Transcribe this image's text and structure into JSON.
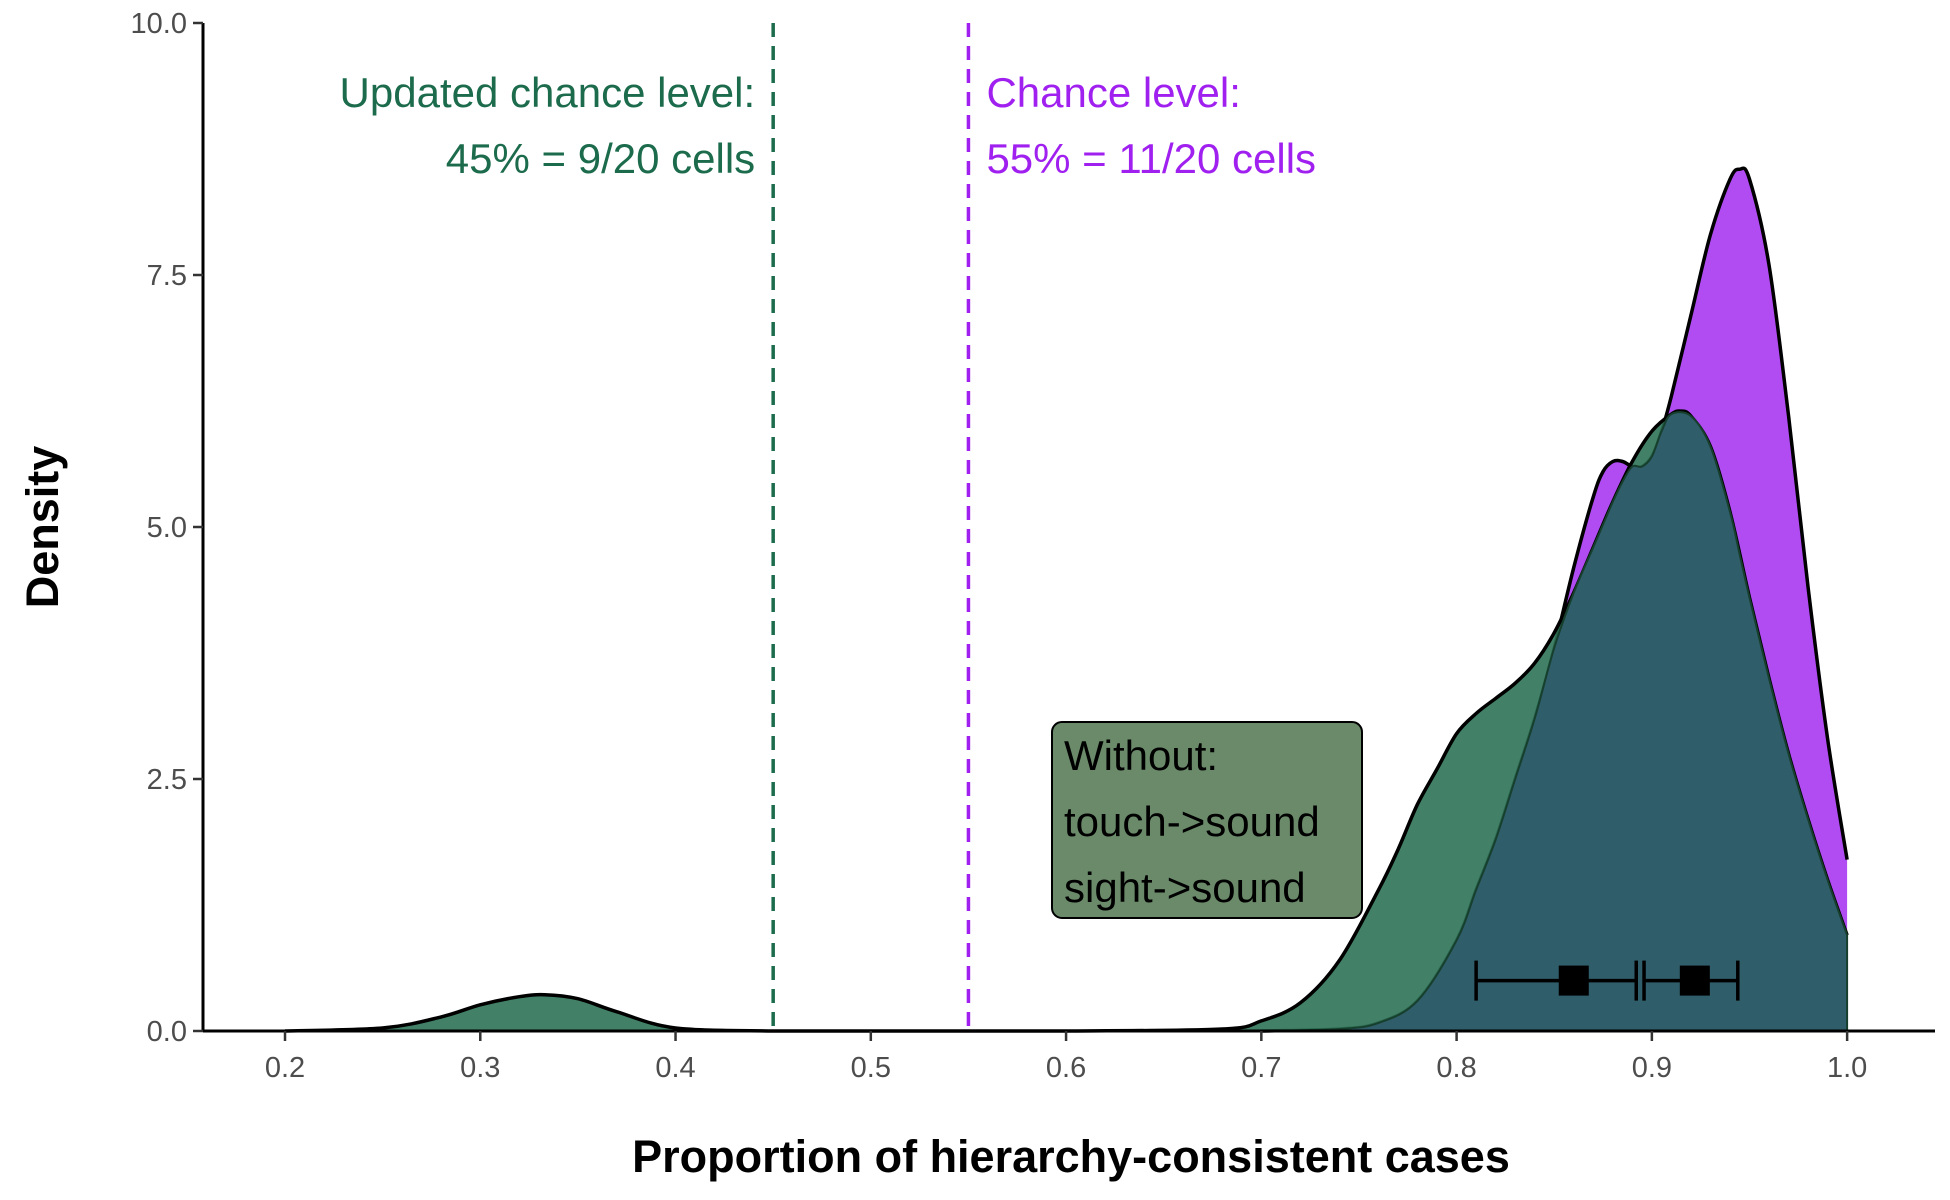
{
  "chart_data": {
    "type": "area",
    "xlabel": "Proportion of hierarchy-consistent cases",
    "ylabel": "Density",
    "xlim": [
      0.158,
      1.045
    ],
    "ylim": [
      0,
      10
    ],
    "x_ticks": [
      0.2,
      0.3,
      0.4,
      0.5,
      0.6,
      0.7,
      0.8,
      0.9,
      1.0
    ],
    "x_tick_labels": [
      "0.2",
      "0.3",
      "0.4",
      "0.5",
      "0.6",
      "0.7",
      "0.8",
      "0.9",
      "1.0"
    ],
    "y_ticks": [
      0,
      2.5,
      5,
      7.5,
      10
    ],
    "y_tick_labels": [
      "0.0",
      "2.5",
      "5.0",
      "7.5",
      "10.0"
    ],
    "grid": false,
    "series": [
      {
        "color": "#a020f0",
        "fill": "#b04cf2",
        "x": [
          0.7,
          0.74,
          0.76,
          0.78,
          0.8,
          0.81,
          0.82,
          0.83,
          0.84,
          0.85,
          0.86,
          0.87,
          0.875,
          0.88,
          0.885,
          0.89,
          0.895,
          0.9,
          0.905,
          0.91,
          0.92,
          0.93,
          0.94,
          0.945,
          0.95,
          0.96,
          0.97,
          0.98,
          0.99,
          1.0
        ],
        "y": [
          0.0,
          0.02,
          0.08,
          0.3,
          0.9,
          1.4,
          1.9,
          2.5,
          3.1,
          3.8,
          4.6,
          5.3,
          5.55,
          5.65,
          5.65,
          5.6,
          5.6,
          5.7,
          5.95,
          6.3,
          7.1,
          7.9,
          8.45,
          8.55,
          8.45,
          7.6,
          6.1,
          4.4,
          2.9,
          1.7
        ]
      },
      {
        "color": "#1b5e3f",
        "fill": "#2e7356",
        "x": [
          0.2,
          0.25,
          0.28,
          0.3,
          0.32,
          0.333,
          0.35,
          0.37,
          0.4,
          0.45,
          0.5,
          0.6,
          0.68,
          0.7,
          0.72,
          0.74,
          0.76,
          0.77,
          0.78,
          0.79,
          0.8,
          0.81,
          0.82,
          0.83,
          0.84,
          0.85,
          0.86,
          0.87,
          0.88,
          0.89,
          0.9,
          0.91,
          0.915,
          0.92,
          0.93,
          0.94,
          0.95,
          0.96,
          0.97,
          0.98,
          0.99,
          1.0
        ],
        "y": [
          0.0,
          0.03,
          0.14,
          0.26,
          0.34,
          0.36,
          0.32,
          0.19,
          0.03,
          0.0,
          0.0,
          0.0,
          0.02,
          0.1,
          0.28,
          0.7,
          1.4,
          1.8,
          2.25,
          2.6,
          2.95,
          3.15,
          3.3,
          3.45,
          3.65,
          3.95,
          4.35,
          4.8,
          5.25,
          5.65,
          5.95,
          6.12,
          6.15,
          6.1,
          5.8,
          5.15,
          4.3,
          3.5,
          2.75,
          2.1,
          1.5,
          0.95
        ]
      }
    ],
    "error_bars": [
      {
        "center": 0.86,
        "low": 0.81,
        "high": 0.892,
        "y": 0.5
      },
      {
        "center": 0.922,
        "low": 0.896,
        "high": 0.944,
        "y": 0.5
      }
    ],
    "reference_lines": [
      {
        "x": 0.45,
        "color": "#1b6b4c",
        "style": "dashed",
        "label_lines": [
          "Updated chance level:",
          "45% = 9/20 cells"
        ],
        "align": "right"
      },
      {
        "x": 0.55,
        "color": "#a020f0",
        "style": "dashed",
        "label_lines": [
          "Chance level:",
          "55% = 11/20 cells"
        ],
        "align": "left"
      }
    ],
    "annotation_box": {
      "lines": [
        "Without:",
        "touch->sound",
        "sight->sound"
      ],
      "fill": "#6a8a6a"
    }
  }
}
